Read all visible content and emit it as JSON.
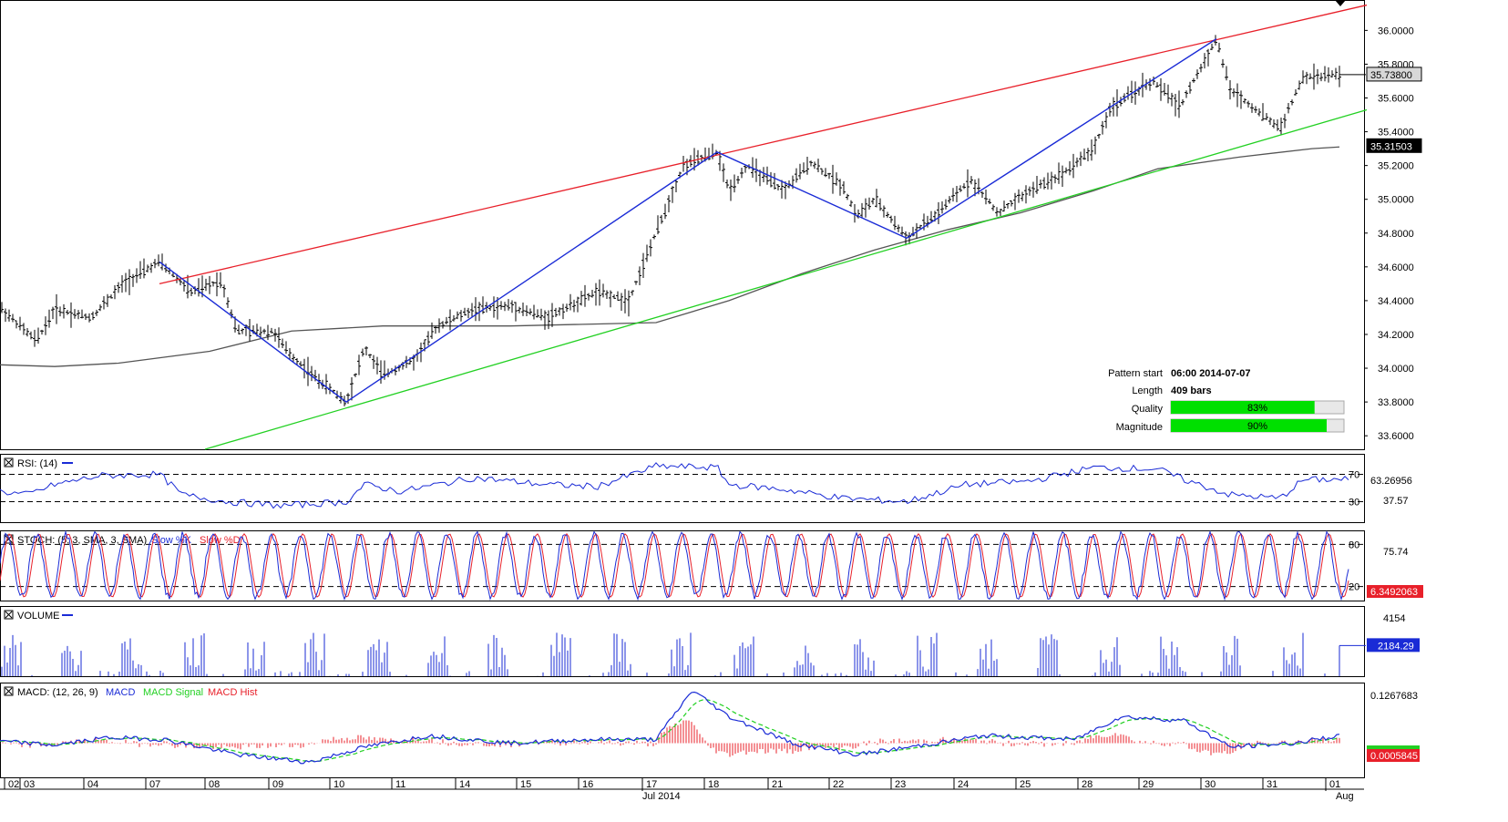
{
  "chart_data": {
    "type": "candlestick",
    "subtype": "ohlc-bars",
    "price_axis": {
      "ylim": [
        33.52,
        36.18
      ],
      "ticks": [
        "36.0000",
        "35.8000",
        "35.6000",
        "35.4000",
        "35.2000",
        "35.0000",
        "34.8000",
        "34.6000",
        "34.4000",
        "34.2000",
        "34.0000",
        "33.8000",
        "33.6000"
      ],
      "last_price_label": "35.73800",
      "ma_value_label": "35.31503"
    },
    "x_axis": {
      "day_labels": [
        "02",
        "03",
        "04",
        "07",
        "08",
        "09",
        "10",
        "11",
        "14",
        "15",
        "16",
        "17",
        "18",
        "21",
        "22",
        "23",
        "24",
        "25",
        "28",
        "29",
        "30",
        "31",
        "01"
      ],
      "month_labels": [
        "Jul 2014",
        "Aug"
      ]
    },
    "price_path": [
      {
        "x": 0,
        "y": 34.36
      },
      {
        "x": 40,
        "y": 34.16
      },
      {
        "x": 60,
        "y": 34.35
      },
      {
        "x": 100,
        "y": 34.3
      },
      {
        "x": 135,
        "y": 34.5
      },
      {
        "x": 175,
        "y": 34.63
      },
      {
        "x": 210,
        "y": 34.45
      },
      {
        "x": 243,
        "y": 34.52
      },
      {
        "x": 260,
        "y": 34.22
      },
      {
        "x": 300,
        "y": 34.22
      },
      {
        "x": 315,
        "y": 34.1
      },
      {
        "x": 345,
        "y": 33.95
      },
      {
        "x": 380,
        "y": 33.8
      },
      {
        "x": 400,
        "y": 34.12
      },
      {
        "x": 420,
        "y": 33.96
      },
      {
        "x": 455,
        "y": 34.05
      },
      {
        "x": 480,
        "y": 34.25
      },
      {
        "x": 520,
        "y": 34.35
      },
      {
        "x": 560,
        "y": 34.37
      },
      {
        "x": 600,
        "y": 34.3
      },
      {
        "x": 655,
        "y": 34.45
      },
      {
        "x": 690,
        "y": 34.4
      },
      {
        "x": 720,
        "y": 34.8
      },
      {
        "x": 750,
        "y": 35.2
      },
      {
        "x": 787,
        "y": 35.28
      },
      {
        "x": 800,
        "y": 35.05
      },
      {
        "x": 820,
        "y": 35.2
      },
      {
        "x": 860,
        "y": 35.05
      },
      {
        "x": 890,
        "y": 35.22
      },
      {
        "x": 925,
        "y": 35.08
      },
      {
        "x": 940,
        "y": 34.9
      },
      {
        "x": 960,
        "y": 35.0
      },
      {
        "x": 995,
        "y": 34.77
      },
      {
        "x": 1030,
        "y": 34.92
      },
      {
        "x": 1065,
        "y": 35.12
      },
      {
        "x": 1095,
        "y": 34.92
      },
      {
        "x": 1130,
        "y": 35.05
      },
      {
        "x": 1165,
        "y": 35.15
      },
      {
        "x": 1200,
        "y": 35.3
      },
      {
        "x": 1220,
        "y": 35.55
      },
      {
        "x": 1265,
        "y": 35.7
      },
      {
        "x": 1295,
        "y": 35.55
      },
      {
        "x": 1335,
        "y": 35.95
      },
      {
        "x": 1350,
        "y": 35.65
      },
      {
        "x": 1405,
        "y": 35.42
      },
      {
        "x": 1430,
        "y": 35.72
      },
      {
        "x": 1470,
        "y": 35.74
      }
    ],
    "moving_average": [
      {
        "x": 0,
        "y": 34.02
      },
      {
        "x": 60,
        "y": 34.01
      },
      {
        "x": 130,
        "y": 34.03
      },
      {
        "x": 230,
        "y": 34.1
      },
      {
        "x": 320,
        "y": 34.22
      },
      {
        "x": 420,
        "y": 34.25
      },
      {
        "x": 560,
        "y": 34.25
      },
      {
        "x": 720,
        "y": 34.27
      },
      {
        "x": 800,
        "y": 34.4
      },
      {
        "x": 880,
        "y": 34.56
      },
      {
        "x": 960,
        "y": 34.7
      },
      {
        "x": 1040,
        "y": 34.82
      },
      {
        "x": 1120,
        "y": 34.92
      },
      {
        "x": 1200,
        "y": 35.05
      },
      {
        "x": 1270,
        "y": 35.18
      },
      {
        "x": 1360,
        "y": 35.25
      },
      {
        "x": 1440,
        "y": 35.3
      },
      {
        "x": 1470,
        "y": 35.31
      }
    ],
    "upper_channel": {
      "x1": 175,
      "y1": 34.5,
      "x2": 1500,
      "y2": 36.15,
      "color": "#e8202a"
    },
    "lower_channel": {
      "x1": 225,
      "y1": 33.52,
      "x2": 1500,
      "y2": 35.53,
      "color": "#22d022"
    },
    "pattern_zigzag": [
      {
        "x": 175,
        "y": 34.63
      },
      {
        "x": 380,
        "y": 33.8
      },
      {
        "x": 787,
        "y": 35.28
      },
      {
        "x": 995,
        "y": 34.77
      },
      {
        "x": 1335,
        "y": 35.95
      }
    ],
    "pattern_info": {
      "pattern_start_label": "Pattern start",
      "pattern_start_value": "06:00 2014-07-07",
      "length_label": "Length",
      "length_value": "409 bars",
      "quality_label": "Quality",
      "quality_value": 83,
      "quality_text": "83%",
      "magnitude_label": "Magnitude",
      "magnitude_value": 90,
      "magnitude_text": "90%"
    },
    "indicators": {
      "rsi": {
        "title": "RSI: (14)",
        "levels": [
          70,
          30
        ],
        "level_labels": [
          "70",
          "30"
        ],
        "value_labels": [
          "63.26956",
          "37.57"
        ],
        "series": [
          {
            "x": 0,
            "y": 45
          },
          {
            "x": 30,
            "y": 40
          },
          {
            "x": 60,
            "y": 55
          },
          {
            "x": 110,
            "y": 68
          },
          {
            "x": 175,
            "y": 70
          },
          {
            "x": 200,
            "y": 40
          },
          {
            "x": 250,
            "y": 30
          },
          {
            "x": 310,
            "y": 24
          },
          {
            "x": 380,
            "y": 30
          },
          {
            "x": 400,
            "y": 55
          },
          {
            "x": 440,
            "y": 45
          },
          {
            "x": 520,
            "y": 65
          },
          {
            "x": 600,
            "y": 55
          },
          {
            "x": 655,
            "y": 52
          },
          {
            "x": 720,
            "y": 82
          },
          {
            "x": 787,
            "y": 80
          },
          {
            "x": 800,
            "y": 55
          },
          {
            "x": 860,
            "y": 48
          },
          {
            "x": 925,
            "y": 35
          },
          {
            "x": 995,
            "y": 30
          },
          {
            "x": 1060,
            "y": 55
          },
          {
            "x": 1130,
            "y": 60
          },
          {
            "x": 1200,
            "y": 80
          },
          {
            "x": 1270,
            "y": 78
          },
          {
            "x": 1300,
            "y": 62
          },
          {
            "x": 1350,
            "y": 40
          },
          {
            "x": 1405,
            "y": 35
          },
          {
            "x": 1430,
            "y": 62
          },
          {
            "x": 1480,
            "y": 63
          }
        ]
      },
      "stoch": {
        "title": "STOCH: (5, 3, SMA, 3, SMA)",
        "legend_k": "Slow %K",
        "legend_d": "Slow %D",
        "levels": [
          80,
          20
        ],
        "level_labels": [
          "80",
          "20"
        ],
        "value_labels": [
          "75.74",
          "6.3492063"
        ],
        "cycles": 46
      },
      "volume": {
        "title": "VOLUME",
        "ticks": [
          "4154"
        ],
        "value_label": "2184.29",
        "max": 5000
      },
      "macd": {
        "title": "MACD: (12, 26, 9)",
        "legend_macd": "MACD",
        "legend_signal": "MACD Signal",
        "legend_hist": "MACD Hist",
        "ticks": [
          "0.1267683"
        ],
        "value_labels": [
          "0.0005845"
        ],
        "ylim": [
          -0.09,
          0.16
        ],
        "series": [
          {
            "x": 0,
            "y": 0.005
          },
          {
            "x": 60,
            "y": -0.005
          },
          {
            "x": 120,
            "y": 0.015
          },
          {
            "x": 180,
            "y": 0.01
          },
          {
            "x": 260,
            "y": -0.03
          },
          {
            "x": 340,
            "y": -0.05
          },
          {
            "x": 400,
            "y": -0.01
          },
          {
            "x": 470,
            "y": 0.02
          },
          {
            "x": 560,
            "y": 0.0
          },
          {
            "x": 650,
            "y": 0.01
          },
          {
            "x": 720,
            "y": 0.01
          },
          {
            "x": 760,
            "y": 0.14
          },
          {
            "x": 800,
            "y": 0.07
          },
          {
            "x": 870,
            "y": 0.0
          },
          {
            "x": 940,
            "y": -0.03
          },
          {
            "x": 1000,
            "y": -0.01
          },
          {
            "x": 1080,
            "y": 0.02
          },
          {
            "x": 1180,
            "y": 0.01
          },
          {
            "x": 1230,
            "y": 0.07
          },
          {
            "x": 1300,
            "y": 0.06
          },
          {
            "x": 1350,
            "y": -0.01
          },
          {
            "x": 1420,
            "y": 0.0
          },
          {
            "x": 1470,
            "y": 0.02
          }
        ]
      }
    },
    "colors": {
      "bars": "#000000",
      "zigzag": "#1a2bd6",
      "ma": "#000000",
      "stoch_k": "#1a2bd6",
      "stoch_d": "#e8202a",
      "volume": "#1a2bd6",
      "macd": "#1a2bd6",
      "signal": "#22d022",
      "hist": "#e8202a",
      "accent": "#00e000"
    }
  }
}
